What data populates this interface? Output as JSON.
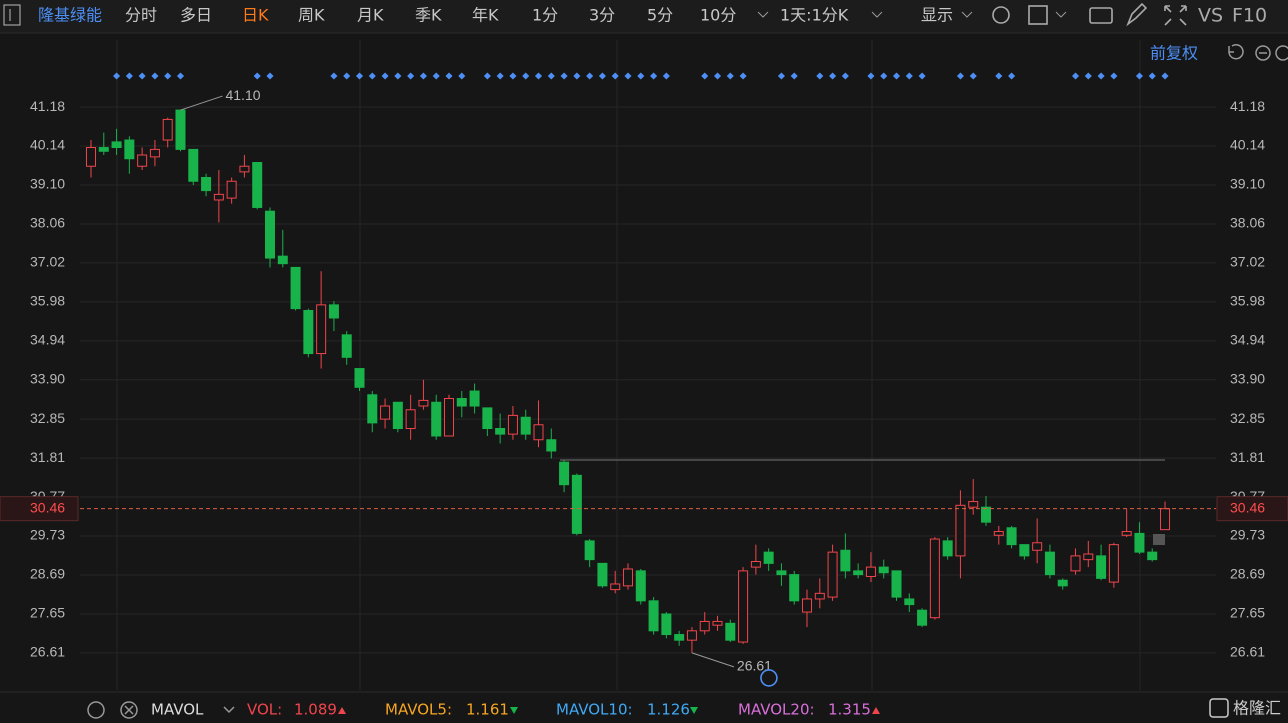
{
  "toolbar": {
    "stock": "隆基绿能",
    "tabs": [
      "分时",
      "多日",
      "日K",
      "周K",
      "月K",
      "季K",
      "年K",
      "1分",
      "3分",
      "5分",
      "10分"
    ],
    "active_tab": 2,
    "period_select": "1天:1分K",
    "display": "显示",
    "vs": "VS",
    "f10": "F10",
    "adjust": "前复权"
  },
  "chart_data": {
    "type": "candlestick",
    "open": [
      39.6,
      40.1,
      40.25,
      40.3,
      39.6,
      39.85,
      40.3,
      41.1,
      40.05,
      39.3,
      38.7,
      38.75,
      39.45,
      39.7,
      38.4,
      37.2,
      36.9,
      35.75,
      34.6,
      35.9,
      35.1,
      34.2,
      33.5,
      32.85,
      33.3,
      32.6,
      33.2,
      33.3,
      32.4,
      33.4,
      33.6,
      33.15,
      32.6,
      32.45,
      32.9,
      32.3,
      32.3,
      31.7,
      31.35,
      29.6,
      29.0,
      28.3,
      28.4,
      28.8,
      28.0,
      27.65,
      27.1,
      26.95,
      27.2,
      27.35,
      27.4,
      26.9,
      28.9,
      29.3,
      28.8,
      28.7,
      27.7,
      28.05,
      28.1,
      29.35,
      28.8,
      28.65,
      28.9,
      28.8,
      28.05,
      27.75,
      27.55,
      29.6,
      29.2,
      30.5,
      30.5,
      29.75,
      29.95,
      29.5,
      29.35,
      29.3,
      28.55,
      28.8,
      29.1,
      29.2,
      28.5,
      29.75,
      29.8,
      29.3,
      29.9
    ],
    "high": [
      40.3,
      40.5,
      40.6,
      40.4,
      40.1,
      40.3,
      40.9,
      41.1,
      40.05,
      39.4,
      39.5,
      39.3,
      39.9,
      39.7,
      38.5,
      37.9,
      36.9,
      35.8,
      36.8,
      36.0,
      35.2,
      34.2,
      33.6,
      33.4,
      33.3,
      33.5,
      33.9,
      33.5,
      33.5,
      33.6,
      33.8,
      33.15,
      33.0,
      33.2,
      33.1,
      33.35,
      32.6,
      31.75,
      31.4,
      29.65,
      29.0,
      28.8,
      29.0,
      28.85,
      28.1,
      27.7,
      27.2,
      27.3,
      27.7,
      27.6,
      27.5,
      28.9,
      29.5,
      29.4,
      29.0,
      28.8,
      28.3,
      28.6,
      29.5,
      29.8,
      29.0,
      29.3,
      29.1,
      28.8,
      28.2,
      27.8,
      29.7,
      29.7,
      30.95,
      31.25,
      30.8,
      30.0,
      30.0,
      29.5,
      30.2,
      29.5,
      28.6,
      29.4,
      29.6,
      29.5,
      29.55,
      30.45,
      30.1,
      29.4,
      30.65
    ],
    "low": [
      39.3,
      39.9,
      39.9,
      39.4,
      39.5,
      39.6,
      40.1,
      40.0,
      39.1,
      38.8,
      38.1,
      38.6,
      39.3,
      38.45,
      36.9,
      36.9,
      35.75,
      34.5,
      34.2,
      35.2,
      34.3,
      33.6,
      32.5,
      32.6,
      32.5,
      32.3,
      33.1,
      32.3,
      32.4,
      32.9,
      33.0,
      32.4,
      32.2,
      32.3,
      32.3,
      32.1,
      31.8,
      30.9,
      29.75,
      28.9,
      28.35,
      28.2,
      28.3,
      27.9,
      27.1,
      27.0,
      26.8,
      26.61,
      27.1,
      27.2,
      26.9,
      26.85,
      28.7,
      28.8,
      28.4,
      27.9,
      27.3,
      27.8,
      28.0,
      28.6,
      28.6,
      28.5,
      28.6,
      28.0,
      27.7,
      27.3,
      27.5,
      29.1,
      28.6,
      30.3,
      30.0,
      29.5,
      29.4,
      29.1,
      29.0,
      28.6,
      28.3,
      28.7,
      28.9,
      28.55,
      28.35,
      29.7,
      29.25,
      29.05,
      29.9
    ],
    "close": [
      40.1,
      40.0,
      40.1,
      39.8,
      39.9,
      40.05,
      40.85,
      40.05,
      39.2,
      38.95,
      38.85,
      39.2,
      39.6,
      38.5,
      37.15,
      37.0,
      35.8,
      34.6,
      35.9,
      35.55,
      34.5,
      33.7,
      32.75,
      33.2,
      32.6,
      33.1,
      33.35,
      32.4,
      33.4,
      33.2,
      33.2,
      32.6,
      32.45,
      32.95,
      32.45,
      32.7,
      32.0,
      31.1,
      29.8,
      29.1,
      28.4,
      28.45,
      28.85,
      28.0,
      27.2,
      27.1,
      26.95,
      27.2,
      27.45,
      27.45,
      26.95,
      28.8,
      29.05,
      29.0,
      28.7,
      28.0,
      28.05,
      28.2,
      29.3,
      28.8,
      28.7,
      28.9,
      28.75,
      28.1,
      27.9,
      27.35,
      29.65,
      29.2,
      30.55,
      30.65,
      30.1,
      29.85,
      29.5,
      29.2,
      29.55,
      28.7,
      28.4,
      29.2,
      29.25,
      28.6,
      29.5,
      29.85,
      29.3,
      29.1,
      30.46
    ],
    "up_color": "#f0454c",
    "down_color": "#19b34b",
    "ylim": [
      25.62,
      42.97
    ],
    "yticks": [
      26.61,
      27.65,
      28.69,
      29.73,
      30.77,
      31.81,
      32.85,
      {
        "value": 33.9,
        "label": "33.90"
      },
      34.94,
      35.98,
      37.02,
      38.06,
      {
        "value": 39.1,
        "label": "39.10"
      },
      40.14,
      41.18
    ],
    "grid": true,
    "last_price": 30.46,
    "ref_line": 31.76,
    "max_label": {
      "value": 41.1,
      "label": "41.10"
    },
    "min_label": 26.61
  },
  "indicator": {
    "name": "MAVOL",
    "items": [
      {
        "label": "VOL:",
        "value": 1.089,
        "color": "#f0454c",
        "trend": "up"
      },
      {
        "label": "MAVOL5:",
        "value": 1.161,
        "color": "#f5a623",
        "trend": "down"
      },
      {
        "label": "MAVOL10:",
        "value": 1.126,
        "color": "#3fa9f5",
        "trend": "down"
      },
      {
        "label": "MAVOL20:",
        "value": 1.315,
        "color": "#d96fd9",
        "trend": "up"
      }
    ]
  },
  "watermark": "格隆汇"
}
